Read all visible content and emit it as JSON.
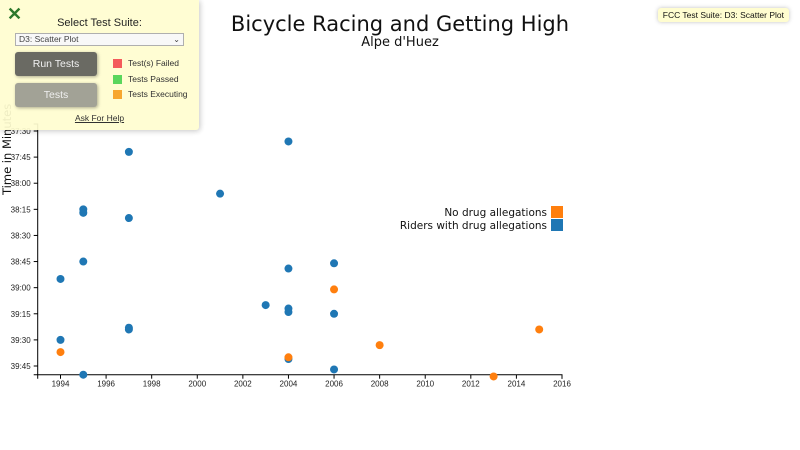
{
  "page": {
    "title": "Bicycle Racing and Getting High",
    "subtitle": "Alpe d'Huez"
  },
  "fcc_panel": {
    "close_icon": "close-x-icon",
    "select_label": "Select Test Suite:",
    "selected_suite": "D3: Scatter Plot",
    "run_button": "Run Tests",
    "tests_button": "Tests",
    "legend": [
      {
        "label": "Test(s) Failed",
        "color": "#f44f4f"
      },
      {
        "label": "Tests Passed",
        "color": "#4ed350"
      },
      {
        "label": "Tests Executing",
        "color": "#f7a11f"
      }
    ],
    "help_link": "Ask For Help",
    "badge": "FCC Test Suite: D3: Scatter Plot"
  },
  "colors": {
    "no_doping": "#ff7f0e",
    "doping": "#1f77b4"
  },
  "chart_data": {
    "type": "scatter",
    "title": "Bicycle Racing and Getting High",
    "subtitle": "Alpe d'Huez",
    "xlabel": "",
    "ylabel": "Time in Minutes",
    "x_ticks": [
      "1994",
      "1996",
      "1998",
      "2000",
      "2002",
      "2004",
      "2006",
      "2008",
      "2010",
      "2012",
      "2014",
      "2016"
    ],
    "y_ticks": [
      "37:30",
      "37:45",
      "38:00",
      "38:15",
      "38:30",
      "38:45",
      "39:00",
      "39:15",
      "39:30",
      "39:45"
    ],
    "xlim": [
      1993,
      2016
    ],
    "ylim": [
      "37:26",
      "39:50"
    ],
    "y_inverted": true,
    "grid": false,
    "legend_position": "right-middle",
    "legend": [
      {
        "label": "No drug allegations",
        "color": "#ff7f0e"
      },
      {
        "label": "Riders with drug allegations",
        "color": "#1f77b4"
      }
    ],
    "series": [
      {
        "name": "Riders with drug allegations",
        "color": "#1f77b4",
        "points": [
          {
            "x": 1994,
            "y": "38:55"
          },
          {
            "x": 1994,
            "y": "39:30"
          },
          {
            "x": 1995,
            "y": "38:15"
          },
          {
            "x": 1995,
            "y": "38:17"
          },
          {
            "x": 1995,
            "y": "38:45"
          },
          {
            "x": 1995,
            "y": "39:50"
          },
          {
            "x": 1997,
            "y": "37:42"
          },
          {
            "x": 1997,
            "y": "38:20"
          },
          {
            "x": 1997,
            "y": "39:23"
          },
          {
            "x": 1997,
            "y": "39:24"
          },
          {
            "x": 2001,
            "y": "38:06"
          },
          {
            "x": 2003,
            "y": "39:10"
          },
          {
            "x": 2004,
            "y": "37:36"
          },
          {
            "x": 2004,
            "y": "38:49"
          },
          {
            "x": 2004,
            "y": "39:12"
          },
          {
            "x": 2004,
            "y": "39:14"
          },
          {
            "x": 2004,
            "y": "39:41"
          },
          {
            "x": 2006,
            "y": "38:46"
          },
          {
            "x": 2006,
            "y": "39:15"
          },
          {
            "x": 2006,
            "y": "39:47"
          }
        ]
      },
      {
        "name": "No drug allegations",
        "color": "#ff7f0e",
        "points": [
          {
            "x": 1994,
            "y": "39:37"
          },
          {
            "x": 2004,
            "y": "39:40"
          },
          {
            "x": 2006,
            "y": "39:01"
          },
          {
            "x": 2008,
            "y": "39:33"
          },
          {
            "x": 2013,
            "y": "39:51"
          },
          {
            "x": 2015,
            "y": "39:24"
          }
        ]
      }
    ]
  }
}
